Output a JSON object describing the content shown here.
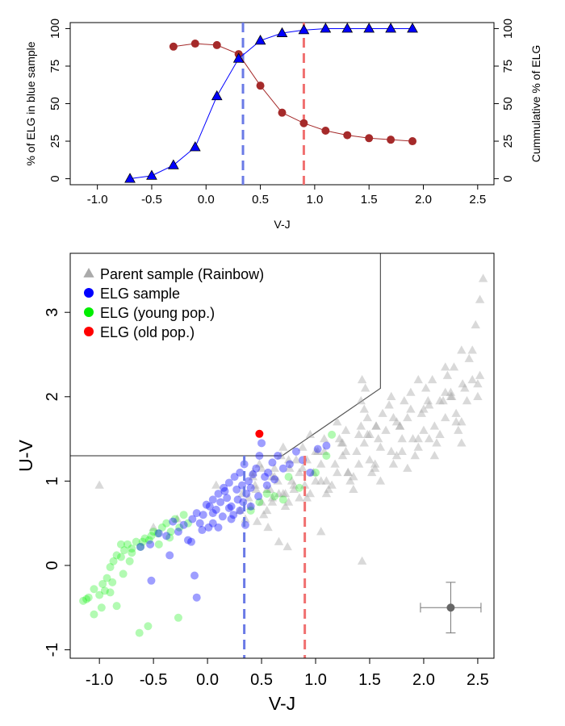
{
  "chart_data": [
    {
      "type": "line",
      "xlabel": "V-J",
      "ylabel": "% of ELG in blue sample",
      "ylabel_right": "Cummulative % of ELG",
      "xlim": [
        -1.25,
        2.65
      ],
      "ylim": [
        -4,
        104
      ],
      "x_ticks": [
        -1.0,
        -0.5,
        0.0,
        0.5,
        1.0,
        1.5,
        2.0,
        2.5
      ],
      "x_tick_labels": [
        "-1.0",
        "-0.5",
        "0.0",
        "0.5",
        "1.0",
        "1.5",
        "2.0",
        "2.5"
      ],
      "y_ticks": [
        0,
        25,
        50,
        75,
        100
      ],
      "y_tick_labels": [
        "0",
        "25",
        "50",
        "75",
        "100"
      ],
      "series": [
        {
          "name": "% of ELG in blue sample",
          "axis": "left",
          "color": "#a52a2a",
          "marker": "circle",
          "x": [
            -0.3,
            -0.1,
            0.1,
            0.3,
            0.5,
            0.7,
            0.9,
            1.1,
            1.3,
            1.5,
            1.7,
            1.9
          ],
          "y": [
            88,
            90,
            89,
            83,
            62,
            44,
            37,
            32,
            29,
            27,
            26,
            25
          ]
        },
        {
          "name": "Cummulative % of ELG",
          "axis": "right",
          "color": "#0000ff",
          "marker": "triangle",
          "x": [
            -0.7,
            -0.5,
            -0.3,
            -0.1,
            0.1,
            0.3,
            0.5,
            0.7,
            0.9,
            1.1,
            1.3,
            1.5,
            1.7,
            1.9
          ],
          "y": [
            0,
            2,
            9,
            21,
            55,
            80,
            92,
            97,
            99,
            100,
            100,
            100,
            100,
            100
          ]
        }
      ],
      "vlines": [
        {
          "x": 0.34,
          "color": "#6a7ae6"
        },
        {
          "x": 0.9,
          "color": "#f07070"
        }
      ]
    },
    {
      "type": "scatter",
      "xlabel": "V-J",
      "ylabel": "U-V",
      "xlim": [
        -1.27,
        2.65
      ],
      "ylim": [
        -1.1,
        3.7
      ],
      "x_ticks": [
        -1.0,
        -0.5,
        0.0,
        0.5,
        1.0,
        1.5,
        2.0,
        2.5
      ],
      "x_tick_labels": [
        "-1.0",
        "-0.5",
        "0.0",
        "0.5",
        "1.0",
        "1.5",
        "2.0",
        "2.5"
      ],
      "y_ticks": [
        -1,
        0,
        1,
        2,
        3
      ],
      "y_tick_labels": [
        "-1",
        "0",
        "1",
        "2",
        "3"
      ],
      "legend": {
        "position": "top-left",
        "entries": [
          {
            "label": "Parent sample (Rainbow)",
            "color": "#aaaaaa",
            "marker": "triangle"
          },
          {
            "label": "ELG sample",
            "color": "#0000ff",
            "marker": "circle"
          },
          {
            "label": "ELG (young pop.)",
            "color": "#00ee00",
            "marker": "circle"
          },
          {
            "label": "ELG (old pop.)",
            "color": "#ff0000",
            "marker": "circle"
          }
        ]
      },
      "selection_boundary": {
        "x": [
          -1.27,
          0.69,
          1.6,
          1.6
        ],
        "y": [
          1.3,
          1.3,
          2.1,
          3.7
        ]
      },
      "vlines": [
        {
          "x": 0.34,
          "color": "#6a7ae6"
        },
        {
          "x": 0.9,
          "color": "#f07070"
        }
      ],
      "error_bar": {
        "x": 2.25,
        "y": -0.5,
        "xerr": 0.28,
        "yerr": 0.3
      },
      "series": [
        {
          "name": "Parent sample (Rainbow)",
          "color": "#aaaaaa",
          "marker": "triangle",
          "x": [
            -1.0,
            -0.5,
            -0.28,
            0.08,
            0.42,
            0.62,
            0.88,
            1.28,
            1.48,
            1.56,
            1.78,
            1.95,
            2.15,
            2.26,
            2.35,
            2.48,
            2.52,
            2.55,
            0.72,
            1.05,
            0.66,
            0.74,
            0.46,
            0.56,
            0.66,
            1.43,
            1.46,
            1.42,
            1.43,
            0.3,
            0.5,
            0.7,
            0.9,
            1.1,
            1.3,
            1.5,
            1.7,
            1.9,
            2.1,
            2.3,
            0.4,
            0.6,
            0.8,
            1.0,
            1.2,
            1.4,
            1.6,
            1.8,
            2.0,
            2.2,
            2.4,
            0.35,
            0.55,
            0.75,
            0.95,
            1.15,
            1.35,
            1.55,
            1.75,
            1.95,
            2.15,
            2.35,
            2.5,
            0.45,
            0.65,
            0.85,
            1.05,
            1.25,
            1.45,
            1.65,
            1.85,
            2.05,
            2.25,
            2.45,
            0.38,
            0.58,
            0.78,
            0.98,
            1.18,
            1.38,
            1.58,
            1.78,
            1.98,
            2.18,
            2.38,
            0.42,
            0.62,
            0.82,
            1.02,
            1.22,
            1.42,
            1.62,
            1.82,
            2.02,
            2.22,
            2.42,
            0.52,
            0.72,
            0.92,
            1.12,
            1.32,
            1.52,
            1.72,
            1.92,
            2.12,
            2.32,
            0.48,
            0.68,
            0.88,
            1.08,
            1.28,
            1.48,
            1.68,
            1.88,
            2.08,
            2.28,
            0.55,
            0.8,
            1.05,
            1.3,
            1.55,
            1.8,
            2.05,
            2.3,
            0.6,
            0.85,
            1.1,
            1.35,
            1.6,
            1.85,
            2.1,
            2.35,
            0.32,
            0.44,
            0.6,
            0.76,
            0.92,
            1.08,
            1.24,
            1.4,
            1.56,
            1.72,
            1.88,
            2.04,
            2.2,
            2.36,
            2.52,
            0.7,
            0.95,
            1.2,
            1.45,
            1.7,
            1.95,
            2.2,
            2.45,
            0.5,
            0.75,
            1.0,
            1.25,
            1.5,
            1.75,
            2.0,
            2.25,
            2.5
          ],
          "y": [
            0.95,
            0.45,
            0.55,
            0.95,
            1.1,
            1.05,
            1.15,
            1.35,
            1.55,
            1.65,
            1.65,
            1.5,
            1.95,
            2.0,
            2.55,
            2.85,
            3.15,
            3.4,
            0.85,
            0.4,
            0.28,
            0.22,
            0.52,
            0.45,
            0.85,
            2.2,
            2.1,
            1.95,
            0.05,
            0.65,
            0.75,
            0.85,
            0.95,
            1.0,
            1.1,
            1.25,
            1.35,
            1.5,
            1.65,
            1.8,
            0.7,
            0.8,
            0.9,
            1.0,
            1.1,
            1.2,
            1.4,
            1.5,
            1.6,
            1.75,
            1.95,
            0.55,
            0.65,
            0.75,
            0.85,
            0.95,
            1.05,
            1.15,
            1.3,
            1.4,
            1.55,
            1.7,
            2.0,
            0.9,
            1.0,
            1.1,
            1.2,
            1.3,
            1.45,
            1.6,
            1.75,
            1.9,
            2.05,
            2.2,
            0.8,
            0.9,
            1.0,
            1.1,
            1.2,
            1.35,
            1.5,
            1.65,
            1.8,
            1.95,
            2.1,
            1.05,
            1.15,
            1.25,
            1.35,
            1.5,
            1.65,
            1.8,
            1.95,
            2.1,
            2.25,
            2.45,
            0.6,
            0.7,
            0.8,
            0.9,
            1.0,
            1.1,
            1.2,
            1.3,
            1.45,
            1.6,
            1.2,
            1.3,
            1.4,
            1.5,
            1.6,
            1.75,
            1.9,
            2.05,
            2.2,
            2.35,
            0.9,
            0.95,
            1.0,
            1.1,
            1.2,
            1.35,
            1.5,
            1.7,
            0.75,
            0.8,
            0.85,
            0.9,
            1.0,
            1.15,
            1.3,
            1.45,
            0.85,
            0.95,
            1.05,
            1.15,
            1.25,
            1.35,
            1.45,
            1.55,
            1.65,
            1.75,
            1.85,
            1.95,
            2.05,
            2.15,
            2.25,
            1.4,
            1.55,
            1.7,
            1.85,
            2.0,
            2.2,
            2.35,
            2.55,
            1.15,
            1.25,
            1.35,
            1.45,
            1.55,
            1.7,
            1.85,
            2.0,
            2.15
          ]
        },
        {
          "name": "ELG sample",
          "color": "#0000ff",
          "marker": "circle",
          "x": [
            -0.62,
            -0.53,
            -0.45,
            -0.38,
            -0.32,
            -0.27,
            -0.22,
            -0.18,
            -0.14,
            -0.1,
            -0.07,
            -0.04,
            -0.01,
            0.02,
            0.05,
            0.08,
            0.1,
            0.12,
            0.15,
            0.18,
            0.2,
            0.22,
            0.25,
            0.27,
            0.3,
            0.32,
            0.34,
            0.36,
            0.38,
            0.4,
            0.42,
            0.45,
            0.48,
            0.5,
            0.53,
            0.56,
            0.6,
            0.65,
            0.7,
            0.76,
            0.82,
            0.88,
            0.95,
            1.02,
            1.1,
            -0.15,
            -0.05,
            0.05,
            0.14,
            0.24,
            0.33,
            0.1,
            0.22,
            0.3,
            0.47,
            -0.35,
            -0.52,
            -0.1,
            -0.12,
            0.01,
            0.16,
            0.28,
            0.4,
            0.55,
            0.62,
            0.05,
            0.2,
            0.35
          ],
          "y": [
            0.22,
            0.25,
            0.38,
            0.35,
            0.52,
            0.4,
            0.48,
            0.3,
            0.55,
            0.62,
            0.5,
            0.6,
            0.72,
            0.7,
            0.78,
            0.66,
            0.85,
            0.75,
            0.92,
            0.8,
            0.98,
            0.7,
            1.05,
            0.9,
            1.1,
            0.95,
            1.2,
            0.85,
            1.0,
            0.92,
            1.08,
            1.15,
            1.3,
            1.45,
            1.05,
            1.1,
            1.22,
            1.3,
            1.15,
            1.2,
            1.35,
            1.25,
            1.1,
            1.38,
            1.42,
            0.28,
            0.42,
            0.5,
            0.58,
            0.6,
            0.75,
            0.45,
            0.55,
            0.65,
            0.82,
            0.12,
            -0.18,
            -0.38,
            -0.12,
            0.45,
            0.88,
            0.78,
            0.7,
            0.95,
            1.02,
            0.62,
            0.68,
            0.48
          ]
        },
        {
          "name": "ELG (young pop.)",
          "color": "#00ee00",
          "marker": "circle",
          "x": [
            -1.15,
            -1.1,
            -1.05,
            -1.0,
            -0.97,
            -0.93,
            -0.9,
            -0.87,
            -0.84,
            -0.8,
            -0.77,
            -0.74,
            -0.7,
            -0.66,
            -0.62,
            -0.58,
            -0.54,
            -0.5,
            -0.46,
            -0.42,
            -0.38,
            -0.34,
            -0.3,
            -0.26,
            -0.22,
            -0.18,
            -1.05,
            -0.98,
            -0.9,
            -0.84,
            -0.78,
            -0.72,
            -0.63,
            -0.55,
            -0.27,
            0.4,
            0.55,
            0.7,
            0.85,
            1.0,
            1.15,
            1.1,
            0.75,
            0.62,
            0.48,
            -1.12,
            -0.95,
            -0.88,
            -0.8,
            -0.7,
            -0.6,
            -0.52,
            -0.45,
            -0.35
          ],
          "y": [
            -0.42,
            -0.38,
            -0.28,
            -0.35,
            -0.22,
            -0.15,
            -0.02,
            0.05,
            0.12,
            0.1,
            0.18,
            0.25,
            0.2,
            0.28,
            0.22,
            0.32,
            0.3,
            0.4,
            0.38,
            0.45,
            0.5,
            0.4,
            0.55,
            0.45,
            0.6,
            0.5,
            -0.58,
            -0.5,
            -0.32,
            -0.48,
            -0.1,
            0.05,
            -0.8,
            -0.72,
            -0.62,
            0.65,
            0.85,
            0.78,
            0.92,
            1.1,
            1.55,
            1.3,
            1.05,
            0.82,
            0.75,
            -0.4,
            -0.3,
            -0.2,
            0.25,
            0.15,
            0.28,
            0.35,
            0.25,
            0.33
          ]
        },
        {
          "name": "ELG (old pop.)",
          "color": "#ff0000",
          "marker": "circle",
          "x": [
            0.48
          ],
          "y": [
            1.56
          ]
        }
      ]
    }
  ]
}
